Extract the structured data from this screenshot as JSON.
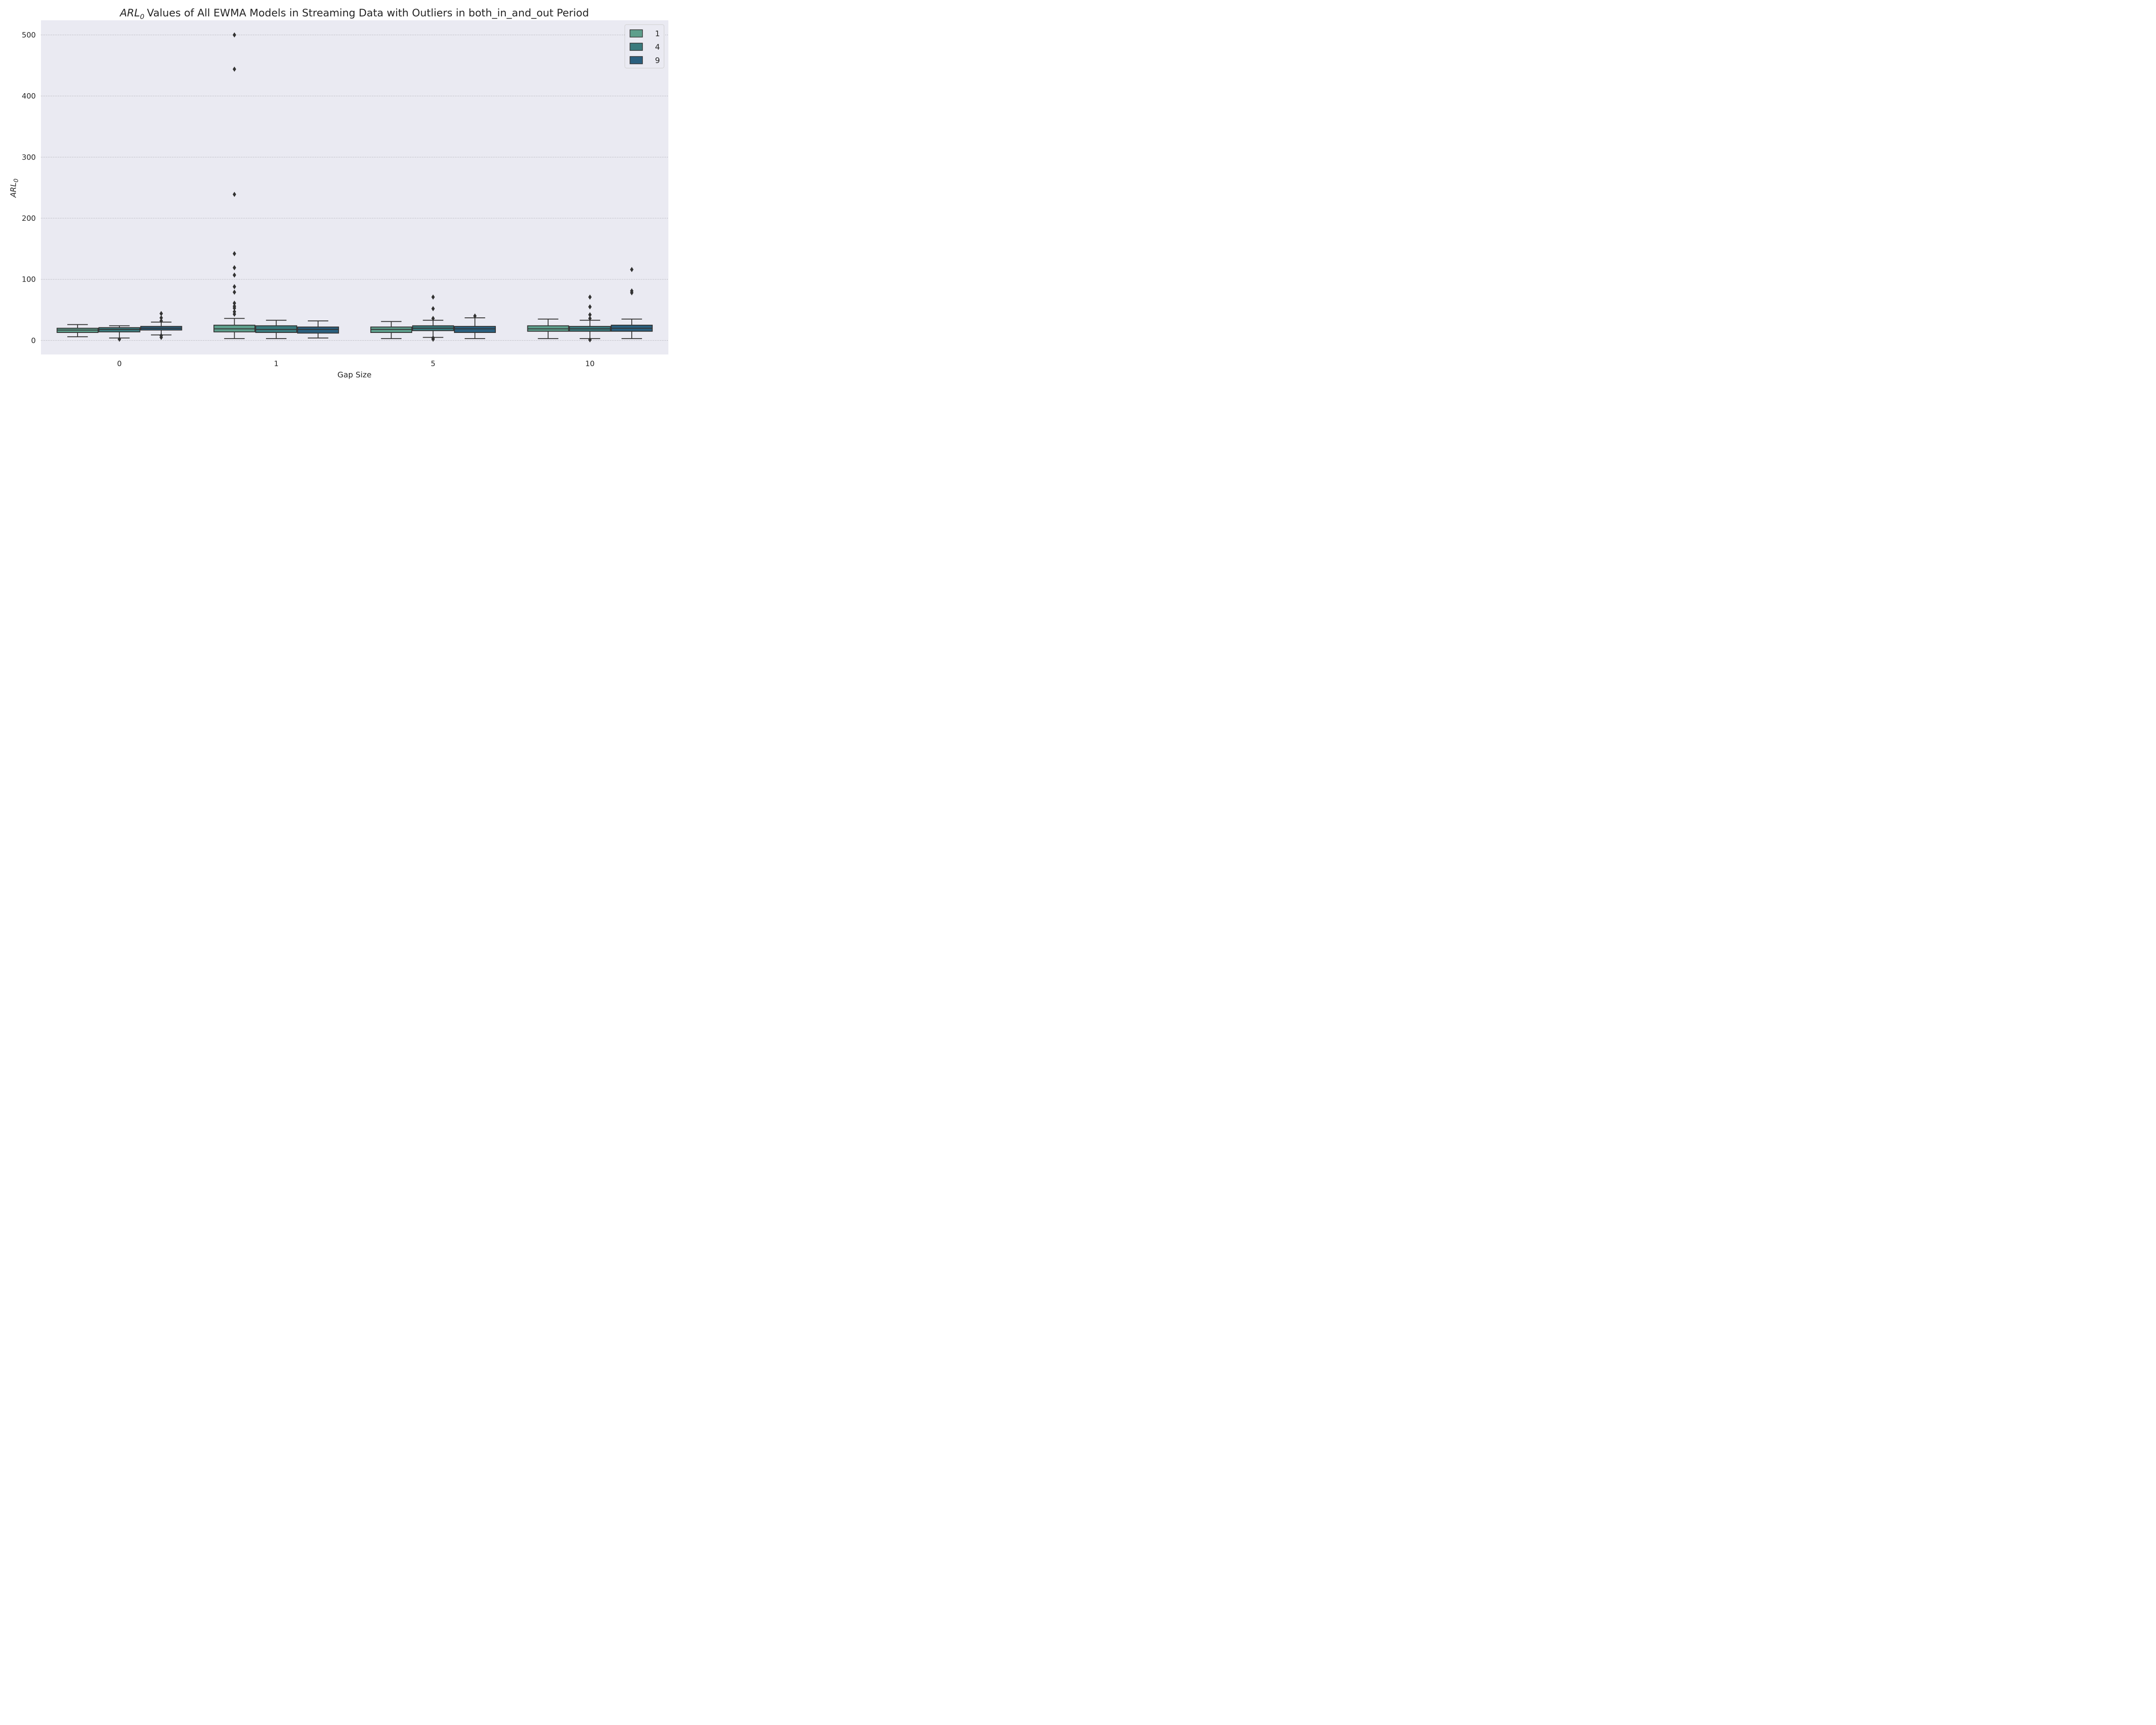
{
  "chart_data": {
    "type": "box",
    "title": "Values of All EWMA Models in Streaming Data with Outliers in both_in_and_out Period",
    "title_math_symbol": "ARL",
    "title_math_subscript": "0",
    "xlabel": "Gap Size",
    "ylabel_symbol": "ARL",
    "ylabel_subscript": "0",
    "categories": [
      "0",
      "1",
      "5",
      "10"
    ],
    "ylim": [
      -23,
      524
    ],
    "yticks": [
      "0",
      "100",
      "200",
      "300",
      "400",
      "500"
    ],
    "ytick_values": [
      0,
      100,
      200,
      300,
      400,
      500
    ],
    "grid": "horizontal dotted",
    "background": "#eaeaf2",
    "legend_position": "top-right",
    "series": [
      {
        "name": "1",
        "color": "#5e9f8c",
        "boxes": [
          {
            "whisker_low": 6,
            "q1": 13,
            "median": 17,
            "q3": 20,
            "whisker_high": 26,
            "outliers": []
          },
          {
            "whisker_low": 3,
            "q1": 14,
            "median": 19,
            "q3": 25,
            "whisker_high": 36,
            "outliers": [
              43,
              47,
              53,
              56,
              61,
              79,
              88,
              107,
              119,
              142,
              239,
              444,
              500
            ]
          },
          {
            "whisker_low": 3,
            "q1": 13,
            "median": 18,
            "q3": 22,
            "whisker_high": 31,
            "outliers": []
          },
          {
            "whisker_low": 3,
            "q1": 15,
            "median": 19,
            "q3": 24,
            "whisker_high": 35,
            "outliers": []
          }
        ]
      },
      {
        "name": "4",
        "color": "#3a7a7d",
        "boxes": [
          {
            "whisker_low": 4,
            "q1": 14,
            "median": 18,
            "q3": 21,
            "whisker_high": 24,
            "outliers": [
              2
            ]
          },
          {
            "whisker_low": 3,
            "q1": 13,
            "median": 18,
            "q3": 24,
            "whisker_high": 33,
            "outliers": []
          },
          {
            "whisker_low": 5,
            "q1": 16,
            "median": 20,
            "q3": 24,
            "whisker_high": 33,
            "outliers": [
              2,
              4,
              36,
              52,
              71
            ]
          },
          {
            "whisker_low": 3,
            "q1": 15,
            "median": 19,
            "q3": 23,
            "whisker_high": 33,
            "outliers": [
              1,
              36,
              42,
              55,
              71
            ]
          }
        ]
      },
      {
        "name": "9",
        "color": "#2a5f7e",
        "boxes": [
          {
            "whisker_low": 9,
            "q1": 17,
            "median": 20,
            "q3": 23,
            "whisker_high": 30,
            "outliers": [
              5,
              8,
              32,
              37,
              44
            ]
          },
          {
            "whisker_low": 4,
            "q1": 12,
            "median": 18,
            "q3": 22,
            "whisker_high": 32,
            "outliers": []
          },
          {
            "whisker_low": 3,
            "q1": 13,
            "median": 19,
            "q3": 23,
            "whisker_high": 37,
            "outliers": [
              40
            ]
          },
          {
            "whisker_low": 3,
            "q1": 15,
            "median": 20,
            "q3": 25,
            "whisker_high": 35,
            "outliers": [
              78,
              81,
              116
            ]
          }
        ]
      }
    ],
    "legend_title": ""
  }
}
